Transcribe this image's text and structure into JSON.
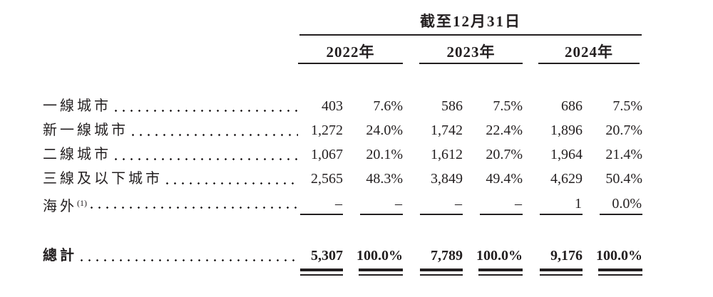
{
  "header": {
    "title": "截至12月31日",
    "years": [
      "2022年",
      "2023年",
      "2024年"
    ]
  },
  "rows": [
    {
      "label": "一線城市",
      "cells": [
        "403",
        "7.6%",
        "586",
        "7.5%",
        "686",
        "7.5%"
      ]
    },
    {
      "label": "新一線城市",
      "cells": [
        "1,272",
        "24.0%",
        "1,742",
        "22.4%",
        "1,896",
        "20.7%"
      ]
    },
    {
      "label": "二線城市",
      "cells": [
        "1,067",
        "20.1%",
        "1,612",
        "20.7%",
        "1,964",
        "21.4%"
      ]
    },
    {
      "label": "三線及以下城市",
      "cells": [
        "2,565",
        "48.3%",
        "3,849",
        "49.4%",
        "4,629",
        "50.4%"
      ]
    },
    {
      "label": "海外",
      "footnote": "(1)",
      "cells": [
        "–",
        "–",
        "–",
        "–",
        "1",
        "0.0%"
      ]
    }
  ],
  "total": {
    "label": "總計",
    "cells": [
      "5,307",
      "100.0%",
      "7,789",
      "100.0%",
      "9,176",
      "100.0%"
    ]
  },
  "colors": {
    "text": "#231f20",
    "rule": "#231f20"
  }
}
